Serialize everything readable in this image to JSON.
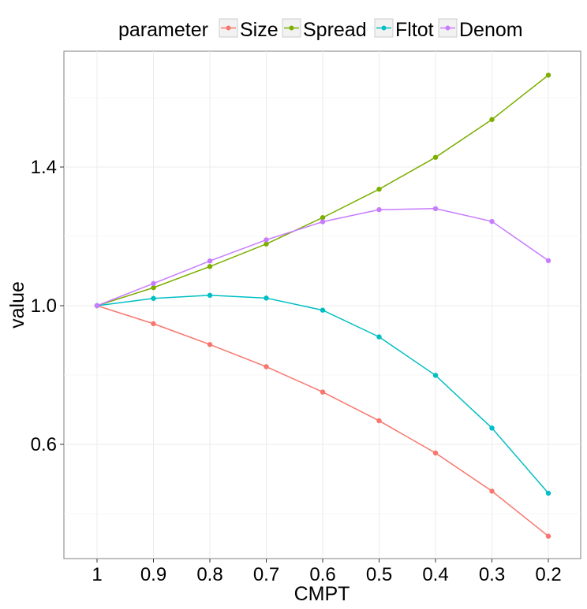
{
  "chart_data": {
    "type": "line",
    "title": "",
    "xlabel": "CMPT",
    "ylabel": "value",
    "legend_title": "parameter",
    "legend_position": "top",
    "grid": true,
    "categories": [
      "1",
      "0.9",
      "0.8",
      "0.7",
      "0.6",
      "0.5",
      "0.4",
      "0.3",
      "0.2"
    ],
    "y_ticks": [
      "0.6",
      "1.0",
      "1.4"
    ],
    "ylim": [
      0.28,
      1.73
    ],
    "series": [
      {
        "name": "Size",
        "color": "#F8766D",
        "values": [
          1.0,
          0.948,
          0.888,
          0.824,
          0.751,
          0.668,
          0.575,
          0.465,
          0.335
        ]
      },
      {
        "name": "Spread",
        "color": "#7CAE00",
        "values": [
          1.0,
          1.052,
          1.113,
          1.178,
          1.254,
          1.336,
          1.428,
          1.537,
          1.665
        ]
      },
      {
        "name": "Fltot",
        "color": "#00BFC4",
        "values": [
          1.0,
          1.021,
          1.03,
          1.022,
          0.987,
          0.91,
          0.799,
          0.647,
          0.459
        ]
      },
      {
        "name": "Denom",
        "color": "#C77CFF",
        "values": [
          1.0,
          1.064,
          1.129,
          1.19,
          1.242,
          1.277,
          1.28,
          1.243,
          1.13
        ]
      }
    ]
  }
}
